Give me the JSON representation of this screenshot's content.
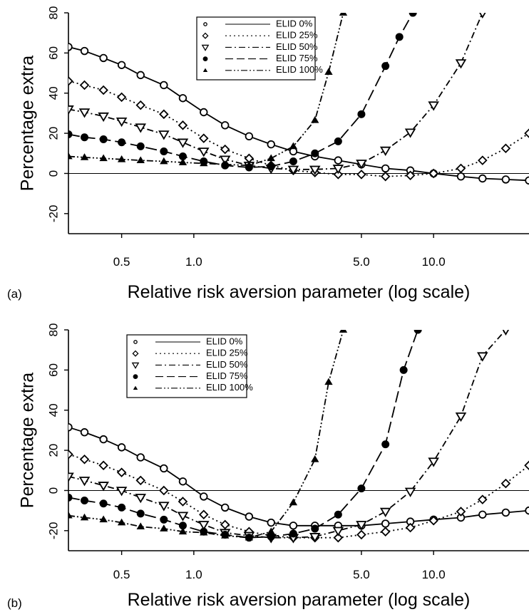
{
  "chart_data": [
    {
      "type": "line",
      "panel_label": "(a)",
      "xlabel": "Relative risk aversion parameter (log scale)",
      "ylabel": "Percentage extra",
      "x_scale": "log",
      "xlim": [
        0.3,
        25
      ],
      "ylim": [
        -30,
        80
      ],
      "xticks": [
        0.5,
        1.0,
        5.0,
        10.0
      ],
      "xtick_labels": [
        "0.5",
        "1.0",
        "5.0",
        "10.0"
      ],
      "yticks": [
        -20,
        0,
        20,
        40,
        60,
        80
      ],
      "ytick_labels": [
        "-20",
        "0",
        "20",
        "40",
        "60",
        "80"
      ],
      "reference_line_y": 0,
      "grid": false,
      "legend_position": "top-center",
      "series": [
        {
          "name": "ELID 0%",
          "marker": "open-circle",
          "line": "solid",
          "x": [
            0.3,
            0.35,
            0.42,
            0.5,
            0.6,
            0.75,
            0.9,
            1.1,
            1.35,
            1.7,
            2.1,
            2.6,
            3.2,
            4.0,
            5.0,
            6.3,
            8.0,
            10.0,
            13.0,
            16.0,
            20.0,
            25.0
          ],
          "y": [
            63,
            61,
            57.5,
            54,
            49,
            44,
            37.5,
            30.5,
            24,
            18.5,
            14.5,
            11,
            8.5,
            6.5,
            4.5,
            2.5,
            1.5,
            0,
            -1.5,
            -2.5,
            -3,
            -3.5
          ]
        },
        {
          "name": "ELID 25%",
          "marker": "open-diamond",
          "line": "dotted",
          "x": [
            0.3,
            0.35,
            0.42,
            0.5,
            0.6,
            0.75,
            0.9,
            1.1,
            1.35,
            1.7,
            2.1,
            2.6,
            3.2,
            4.0,
            5.0,
            6.3,
            8.0,
            10.0,
            13.0,
            16.0,
            20.0,
            25.0
          ],
          "y": [
            46,
            44,
            41.5,
            38,
            34,
            29.5,
            24,
            17.5,
            12,
            7.5,
            4,
            1.5,
            0.5,
            -0.5,
            -0.5,
            -1.5,
            -1,
            0,
            2.5,
            6.5,
            12.5,
            20
          ]
        },
        {
          "name": "ELID 50%",
          "marker": "open-triangle-down",
          "line": "dash-dot",
          "x": [
            0.3,
            0.35,
            0.42,
            0.5,
            0.6,
            0.75,
            0.9,
            1.1,
            1.35,
            1.7,
            2.1,
            2.6,
            3.2,
            4.0,
            5.0,
            6.3,
            8.0,
            10.0,
            13.0,
            16.0
          ],
          "y": [
            32,
            30.5,
            28.5,
            26,
            23,
            19.5,
            15.5,
            11,
            7,
            4,
            2.5,
            2,
            2,
            2.5,
            5,
            11.5,
            20.5,
            34,
            55,
            80
          ]
        },
        {
          "name": "ELID 75%",
          "marker": "filled-circle",
          "line": "long-dash",
          "x": [
            0.3,
            0.35,
            0.42,
            0.5,
            0.6,
            0.75,
            0.9,
            1.1,
            1.35,
            1.7,
            2.1,
            2.6,
            3.2,
            4.0,
            5.0,
            6.3,
            7.2,
            8.2
          ],
          "y": [
            19.5,
            18,
            17,
            15.5,
            13.5,
            11,
            8.5,
            6,
            4,
            3,
            3.5,
            6,
            10,
            16,
            29.5,
            53.5,
            68,
            80
          ]
        },
        {
          "name": "ELID 100%",
          "marker": "filled-triangle-up",
          "line": "dash-dot-dot",
          "x": [
            0.3,
            0.35,
            0.42,
            0.5,
            0.6,
            0.75,
            0.9,
            1.1,
            1.35,
            1.7,
            2.1,
            2.6,
            3.2,
            3.65,
            4.2
          ],
          "y": [
            8.5,
            8,
            7.5,
            7,
            6.5,
            6,
            5.5,
            5,
            4.5,
            4,
            7.5,
            13.5,
            26.5,
            50.5,
            80
          ]
        }
      ]
    },
    {
      "type": "line",
      "panel_label": "(b)",
      "xlabel": "Relative risk aversion parameter (log scale)",
      "ylabel": "Percentage extra",
      "x_scale": "log",
      "xlim": [
        0.3,
        25
      ],
      "ylim": [
        -30,
        80
      ],
      "xticks": [
        0.5,
        1.0,
        5.0,
        10.0
      ],
      "xtick_labels": [
        "0.5",
        "1.0",
        "5.0",
        "10.0"
      ],
      "yticks": [
        -20,
        0,
        20,
        40,
        60,
        80
      ],
      "ytick_labels": [
        "-20",
        "0",
        "20",
        "40",
        "60",
        "80"
      ],
      "reference_line_y": 0,
      "grid": false,
      "legend_position": "top-left",
      "series": [
        {
          "name": "ELID 0%",
          "marker": "open-circle",
          "line": "solid",
          "x": [
            0.3,
            0.35,
            0.42,
            0.5,
            0.6,
            0.75,
            0.9,
            1.1,
            1.35,
            1.7,
            2.1,
            2.6,
            3.2,
            4.0,
            5.0,
            6.3,
            8.0,
            10.0,
            13.0,
            16.0,
            20.0,
            25.0
          ],
          "y": [
            31.5,
            29,
            25.5,
            21.5,
            16.5,
            11,
            4.5,
            -3,
            -8.5,
            -13,
            -16,
            -17.5,
            -17.5,
            -17.5,
            -17.5,
            -16.5,
            -15.5,
            -14.5,
            -13.5,
            -12,
            -11,
            -10
          ]
        },
        {
          "name": "ELID 25%",
          "marker": "open-diamond",
          "line": "dotted",
          "x": [
            0.3,
            0.35,
            0.42,
            0.5,
            0.6,
            0.75,
            0.9,
            1.1,
            1.35,
            1.7,
            2.1,
            2.6,
            3.2,
            4.0,
            5.0,
            6.3,
            8.0,
            10.0,
            13.0,
            16.0,
            20.0,
            25.0
          ],
          "y": [
            18,
            15.5,
            12.5,
            9,
            5,
            0,
            -5.5,
            -12,
            -17,
            -20.5,
            -22.5,
            -23.5,
            -23.5,
            -23.5,
            -22,
            -20.5,
            -18.5,
            -15,
            -10.5,
            -4.5,
            3.5,
            12.5
          ]
        },
        {
          "name": "ELID 50%",
          "marker": "open-triangle-down",
          "line": "dash-dot",
          "x": [
            0.3,
            0.35,
            0.42,
            0.5,
            0.6,
            0.75,
            0.9,
            1.1,
            1.35,
            1.7,
            2.1,
            2.6,
            3.2,
            4.0,
            5.0,
            6.3,
            8.0,
            10.0,
            13.0,
            16.0,
            20.0
          ],
          "y": [
            7,
            5,
            2.5,
            0,
            -3.5,
            -7.5,
            -12.5,
            -17,
            -21,
            -22.5,
            -23.5,
            -23.5,
            -23,
            -20,
            -17,
            -10.5,
            -0.5,
            14.5,
            37,
            67,
            80
          ]
        },
        {
          "name": "ELID 75%",
          "marker": "filled-circle",
          "line": "long-dash",
          "x": [
            0.3,
            0.35,
            0.42,
            0.5,
            0.6,
            0.75,
            0.9,
            1.1,
            1.35,
            1.7,
            2.1,
            2.6,
            3.2,
            4.0,
            5.0,
            6.3,
            7.5,
            8.6
          ],
          "y": [
            -3.5,
            -5,
            -6.5,
            -8.5,
            -11.5,
            -14.5,
            -17.5,
            -20.5,
            -22,
            -23.5,
            -23,
            -21.5,
            -19,
            -12,
            1,
            23,
            60,
            80
          ]
        },
        {
          "name": "ELID 100%",
          "marker": "filled-triangle-up",
          "line": "dash-dot-dot",
          "x": [
            0.3,
            0.35,
            0.42,
            0.5,
            0.6,
            0.75,
            0.9,
            1.1,
            1.35,
            1.7,
            2.1,
            2.6,
            3.2,
            3.65,
            4.2
          ],
          "y": [
            -12.5,
            -13.5,
            -14.5,
            -16,
            -18,
            -19,
            -20.5,
            -21,
            -22.5,
            -23.5,
            -20.5,
            -6,
            15.5,
            54,
            80
          ]
        }
      ]
    }
  ]
}
